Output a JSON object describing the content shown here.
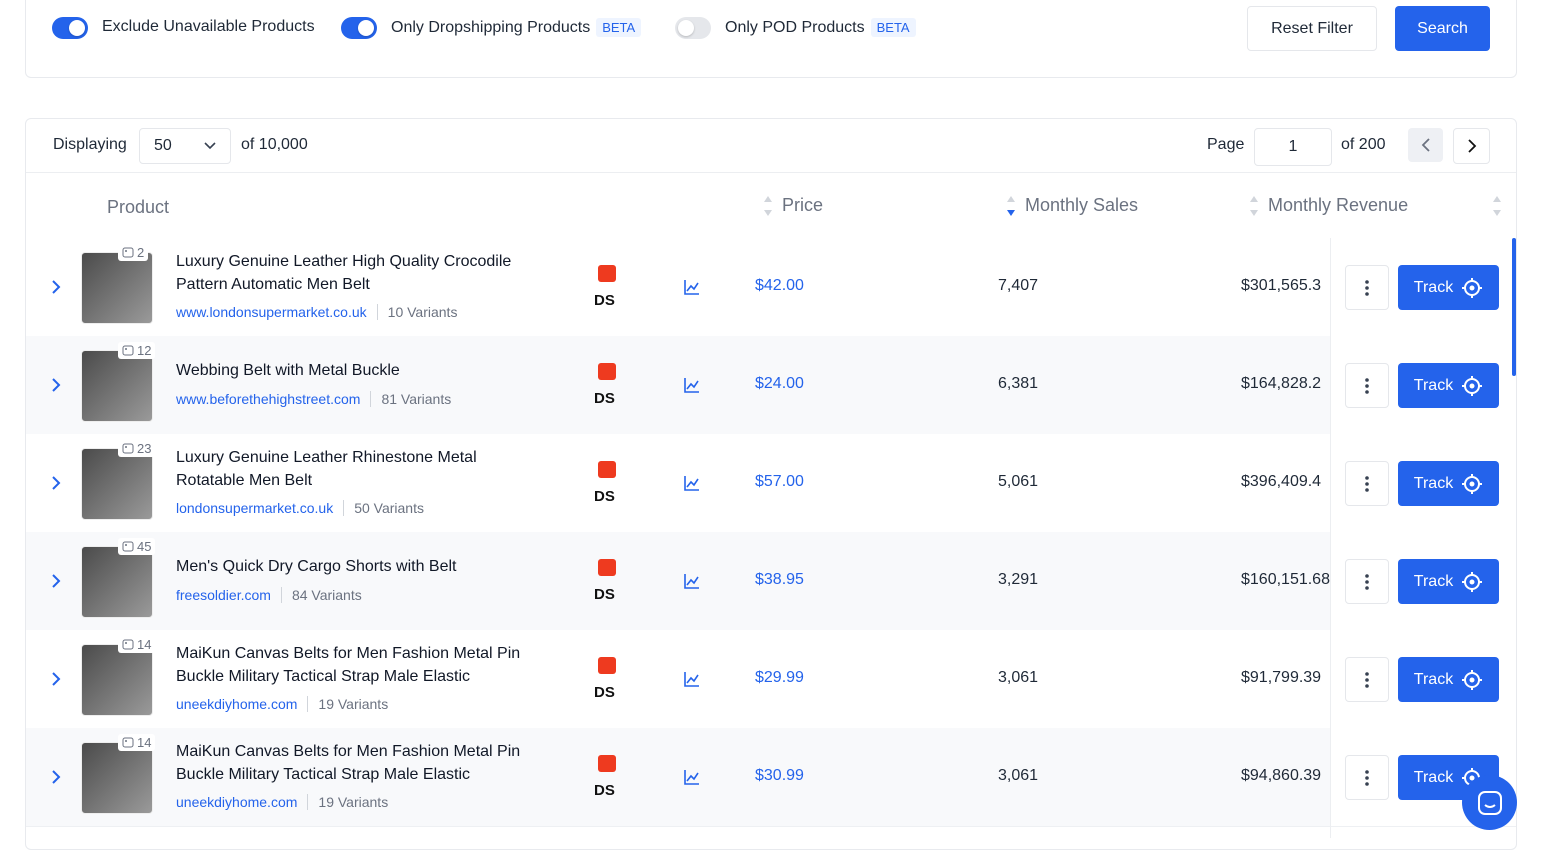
{
  "filters": {
    "toggles": [
      {
        "label": "Exclude Unavailable Products",
        "on": true
      },
      {
        "label": "Only Dropshipping Products",
        "on": true,
        "badge": "BETA"
      },
      {
        "label": "Only POD Products",
        "on": false,
        "badge": "BETA"
      }
    ],
    "reset": "Reset Filter",
    "search": "Search"
  },
  "pager": {
    "displaying": "Displaying",
    "per_page": "50",
    "of_total": "of 10,000",
    "page_label": "Page",
    "page": "1",
    "of_pages": "of 200"
  },
  "table": {
    "columns": [
      "Product",
      "Price",
      "Monthly Sales",
      "Monthly Revenue"
    ],
    "badge": "DS",
    "track": "Track",
    "rows": [
      {
        "image_count": "2",
        "title": "Luxury Genuine Leather High Quality Crocodile Pattern Automatic Men Belt",
        "url": "www.londonsupermarket.co.uk",
        "variants": "10 Variants",
        "price": "$42.00",
        "sales": "7,407",
        "revenue": "$301,565.3"
      },
      {
        "image_count": "12",
        "title": "Webbing Belt with Metal Buckle",
        "url": "www.beforethehighstreet.com",
        "variants": "81 Variants",
        "price": "$24.00",
        "sales": "6,381",
        "revenue": "$164,828.2"
      },
      {
        "image_count": "23",
        "title": "Luxury Genuine Leather Rhinestone Metal Rotatable Men Belt",
        "url": "londonsupermarket.co.uk",
        "variants": "50 Variants",
        "price": "$57.00",
        "sales": "5,061",
        "revenue": "$396,409.4"
      },
      {
        "image_count": "45",
        "title": "Men's Quick Dry Cargo Shorts with Belt",
        "url": "freesoldier.com",
        "variants": "84 Variants",
        "price": "$38.95",
        "sales": "3,291",
        "revenue": "$160,151.68"
      },
      {
        "image_count": "14",
        "title": "MaiKun Canvas Belts for Men Fashion Metal Pin Buckle Military Tactical Strap Male Elastic",
        "url": "uneekdiyhome.com",
        "variants": "19 Variants",
        "price": "$29.99",
        "sales": "3,061",
        "revenue": "$91,799.39"
      },
      {
        "image_count": "14",
        "title": "MaiKun Canvas Belts for Men Fashion Metal Pin Buckle Military Tactical Strap Male Elastic",
        "url": "uneekdiyhome.com",
        "variants": "19 Variants",
        "price": "$30.99",
        "sales": "3,061",
        "revenue": "$94,860.39"
      }
    ]
  }
}
